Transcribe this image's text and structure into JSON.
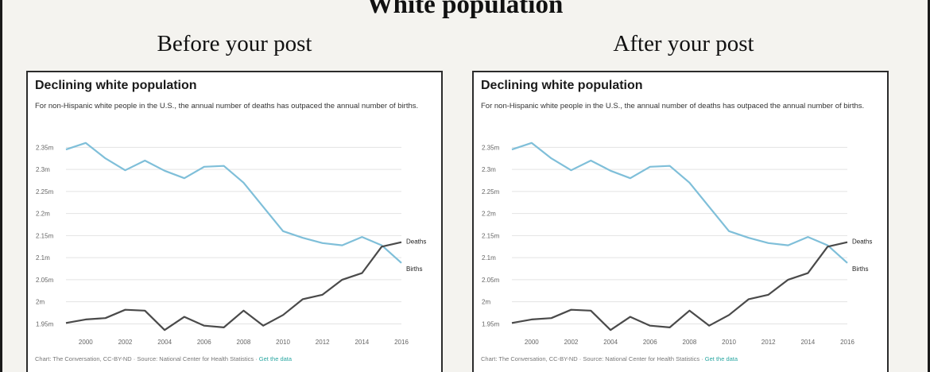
{
  "title": "White population",
  "panels": [
    {
      "label": "Before your post"
    },
    {
      "label": "After your post"
    }
  ],
  "card": {
    "title": "Declining white population",
    "description": "For non-Hispanic white people in the U.S., the annual number of deaths has outpaced the annual number of births.",
    "footer_prefix": "Chart: The Conversation, CC-BY-ND · Source: National Center for Health Statistics · ",
    "footer_link": "Get the data"
  },
  "colors": {
    "births": "#7fbfd9",
    "deaths": "#4a4a4a",
    "grid": "#e3e3e3",
    "link": "#2aa7a2"
  },
  "chart_data": {
    "type": "line",
    "x": [
      1999,
      2000,
      2001,
      2002,
      2003,
      2004,
      2005,
      2006,
      2007,
      2008,
      2009,
      2010,
      2011,
      2012,
      2013,
      2014,
      2015,
      2016
    ],
    "xticks": [
      2000,
      2002,
      2004,
      2006,
      2008,
      2010,
      2012,
      2014,
      2016
    ],
    "xtick_labels": [
      "2000",
      "2002",
      "2004",
      "2006",
      "2008",
      "2010",
      "2012",
      "2014",
      "2016"
    ],
    "ylim": [
      1.94,
      2.365
    ],
    "yticks": [
      1.95,
      2.0,
      2.05,
      2.1,
      2.15,
      2.2,
      2.25,
      2.3,
      2.35
    ],
    "ytick_labels": [
      "1.95m",
      "2m",
      "2.05m",
      "2.1m",
      "2.15m",
      "2.2m",
      "2.25m",
      "2.3m",
      "2.35m"
    ],
    "series": [
      {
        "name": "Births",
        "color": "#7fbfd9",
        "values": [
          2.345,
          2.36,
          2.325,
          2.298,
          2.32,
          2.297,
          2.28,
          2.306,
          2.308,
          2.27,
          2.215,
          2.16,
          2.145,
          2.133,
          2.128,
          2.147,
          2.128,
          2.088
        ]
      },
      {
        "name": "Deaths",
        "color": "#4a4a4a",
        "values": [
          1.952,
          1.96,
          1.963,
          1.982,
          1.98,
          1.936,
          1.966,
          1.946,
          1.942,
          1.98,
          1.946,
          1.97,
          2.006,
          2.016,
          2.05,
          2.065,
          2.125,
          2.135
        ]
      }
    ],
    "grid": true,
    "legend": "inline-end-labels"
  }
}
